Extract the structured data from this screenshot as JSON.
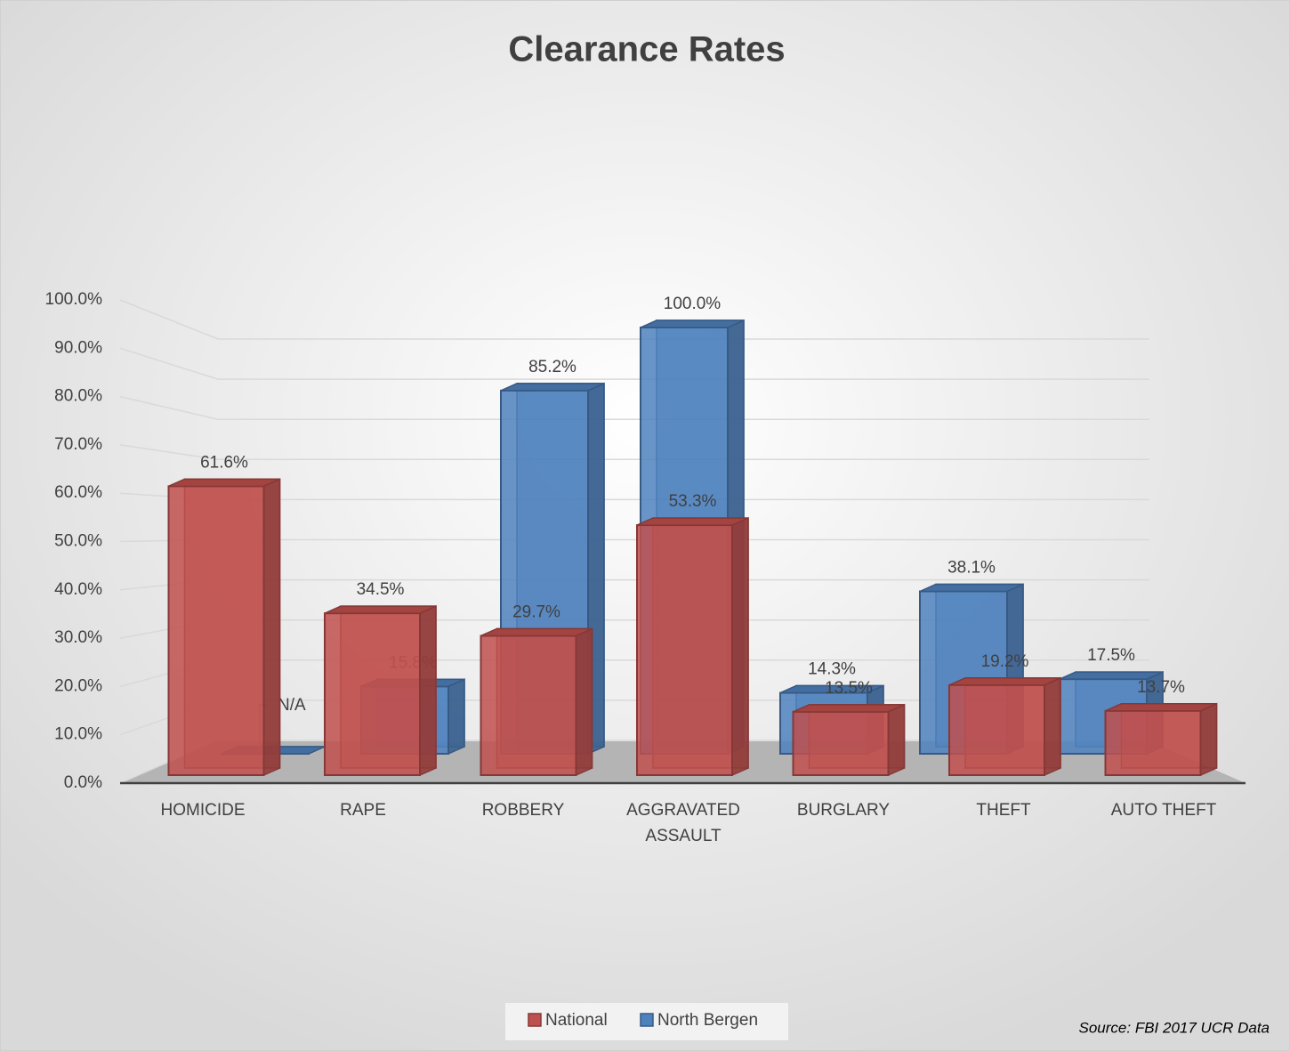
{
  "chart_data": {
    "type": "bar3d",
    "title": "Clearance Rates",
    "categories": [
      "HOMICIDE",
      "RAPE",
      "ROBBERY",
      "AGGRAVATED ASSAULT",
      "BURGLARY",
      "THEFT",
      "AUTO THEFT"
    ],
    "series": [
      {
        "name": "National",
        "color": "#c0504d",
        "values": [
          61.6,
          34.5,
          29.7,
          53.3,
          13.5,
          19.2,
          13.7
        ],
        "value_labels": [
          "61.6%",
          "34.5%",
          "29.7%",
          "53.3%",
          "13.5%",
          "19.2%",
          "13.7%"
        ]
      },
      {
        "name": "North Bergen",
        "color": "#4f81bd",
        "values": [
          null,
          15.8,
          85.2,
          100.0,
          14.3,
          38.1,
          17.5
        ],
        "value_labels": [
          "N/A",
          "15.8%",
          "85.2%",
          "100.0%",
          "14.3%",
          "38.1%",
          "17.5%"
        ]
      }
    ],
    "ylim": [
      0,
      100
    ],
    "yticks": [
      {
        "value": 0,
        "label": "0.0%"
      },
      {
        "value": 10,
        "label": "10.0%"
      },
      {
        "value": 20,
        "label": "20.0%"
      },
      {
        "value": 30,
        "label": "30.0%"
      },
      {
        "value": 40,
        "label": "40.0%"
      },
      {
        "value": 50,
        "label": "50.0%"
      },
      {
        "value": 60,
        "label": "60.0%"
      },
      {
        "value": 70,
        "label": "70.0%"
      },
      {
        "value": 80,
        "label": "80.0%"
      },
      {
        "value": 90,
        "label": "90.0%"
      },
      {
        "value": 100,
        "label": "100.0%"
      }
    ],
    "grid": true,
    "legend": "bottom",
    "source": "Source: FBI 2017 UCR Data"
  }
}
